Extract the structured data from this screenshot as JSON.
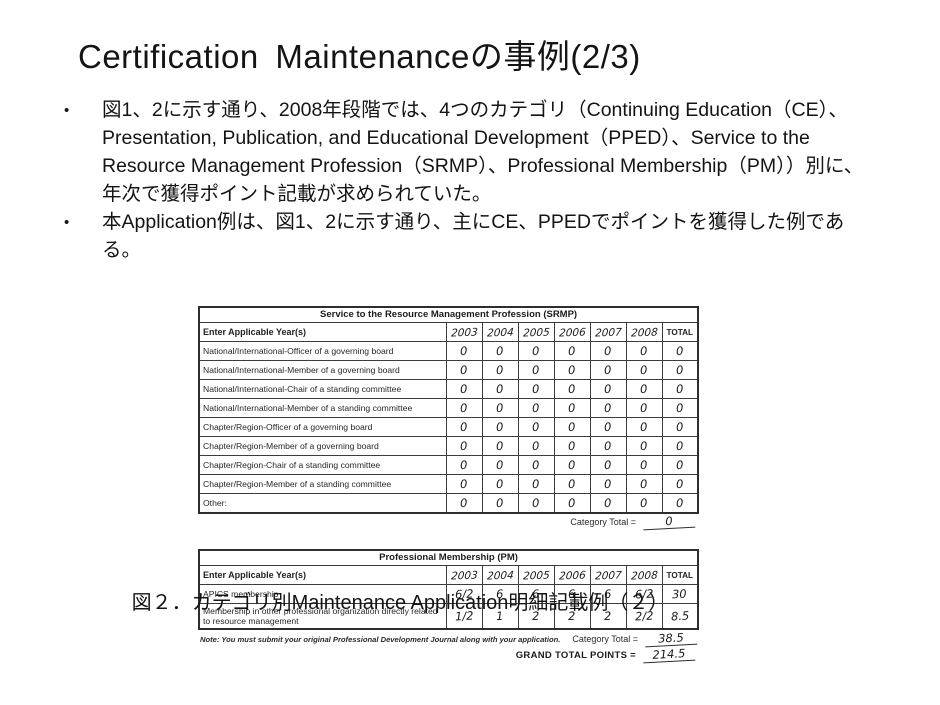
{
  "slide": {
    "title": "Certification Maintenanceの事例(2/3)",
    "bullet_marker": "•",
    "bullets": [
      "図1、2に示す通り、2008年段階では、4つのカテゴリ（Continuing Education（CE）、Presentation, Publication, and Educational Development（PPED）、Service to the Resource Management Profession（SRMP）、Professional Membership（PM））別に、年次で獲得ポイント記載が求められていた。",
      "本Application例は、図1、2に示す通り、主にCE、PPEDでポイントを獲得した例である。"
    ],
    "caption": "図２．カテゴリ別Maintenance Application明細記載例（２）"
  },
  "figure": {
    "srmp": {
      "title": "Service to the Resource Management Profession (SRMP)",
      "row_header": "Enter Applicable Year(s)",
      "years": [
        "2003",
        "2004",
        "2005",
        "2006",
        "2007",
        "2008"
      ],
      "total_label": "TOTAL",
      "rows": [
        {
          "label": "National/International-Officer of a governing board",
          "values": [
            "0",
            "0",
            "0",
            "0",
            "0",
            "0"
          ],
          "total": "0"
        },
        {
          "label": "National/International-Member of a governing board",
          "values": [
            "0",
            "0",
            "0",
            "0",
            "0",
            "0"
          ],
          "total": "0"
        },
        {
          "label": "National/International-Chair of a standing committee",
          "values": [
            "0",
            "0",
            "0",
            "0",
            "0",
            "0"
          ],
          "total": "0"
        },
        {
          "label": "National/International-Member of a standing committee",
          "values": [
            "0",
            "0",
            "0",
            "0",
            "0",
            "0"
          ],
          "total": "0"
        },
        {
          "label": "Chapter/Region-Officer of a governing board",
          "values": [
            "0",
            "0",
            "0",
            "0",
            "0",
            "0"
          ],
          "total": "0"
        },
        {
          "label": "Chapter/Region-Member of a governing board",
          "values": [
            "0",
            "0",
            "0",
            "0",
            "0",
            "0"
          ],
          "total": "0"
        },
        {
          "label": "Chapter/Region-Chair of a standing committee",
          "values": [
            "0",
            "0",
            "0",
            "0",
            "0",
            "0"
          ],
          "total": "0"
        },
        {
          "label": "Chapter/Region-Member of a standing committee",
          "values": [
            "0",
            "0",
            "0",
            "0",
            "0",
            "0"
          ],
          "total": "0"
        },
        {
          "label": "Other:",
          "values": [
            "0",
            "0",
            "0",
            "0",
            "0",
            "0"
          ],
          "total": "0"
        }
      ],
      "category_total_label": "Category Total =",
      "category_total": "0"
    },
    "pm": {
      "title": "Professional Membership (PM)",
      "row_header": "Enter Applicable Year(s)",
      "years": [
        "2003",
        "2004",
        "2005",
        "2006",
        "2007",
        "2008"
      ],
      "total_label": "TOTAL",
      "rows": [
        {
          "label": "APICS membership",
          "values": [
            "6/2",
            "6",
            "6",
            "6",
            "6",
            "6/2"
          ],
          "total": "30"
        },
        {
          "label": "Membership in other professional organization directly related to resource management",
          "values": [
            "1/2",
            "1",
            "2",
            "2",
            "2",
            "2/2"
          ],
          "total": "8.5"
        }
      ],
      "note": "Note: You must submit your original Professional Development Journal along with your application.",
      "category_total_label": "Category Total =",
      "category_total": "38.5",
      "grand_total_label": "GRAND TOTAL POINTS =",
      "grand_total": "214.5"
    }
  }
}
